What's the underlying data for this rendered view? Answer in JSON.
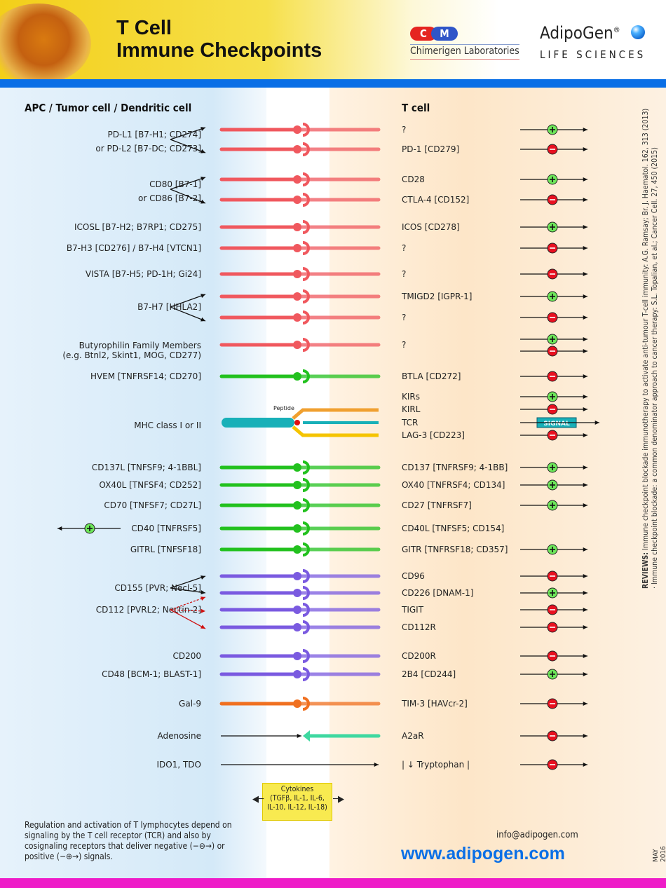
{
  "header": {
    "title_line1": "T Cell",
    "title_line2": "Immune Checkpoints",
    "partner_logo_c": "C",
    "partner_logo_m": "M",
    "partner_name": "Chimerigen Laboratories",
    "brand": "AdipoGen",
    "brand_reg": "®",
    "brand_sub": "LIFE SCIENCES"
  },
  "columns": {
    "left": "APC / Tumor cell / Dendritic cell",
    "right": "T cell"
  },
  "colors": {
    "pd1_family": "#f0585e",
    "tnf_green": "#22c11e",
    "mhc": "#18b0b8",
    "kir": "#f0a030",
    "lag3": "#f5c400",
    "nectin": "#7a5ae0",
    "gal9": "#f07020",
    "adenosine": "#3ed8a0",
    "positive": "#6ee85a",
    "negative": "#e81020",
    "header_blue": "#0a6fe6",
    "footer_pink": "#ee1cc8"
  },
  "left_labels": [
    {
      "lines": [
        "PD-L1 [B7-H1; CD274]",
        "or PD-L2 [B7-DC; CD273]"
      ]
    },
    {
      "lines": [
        "CD80 [B7-1]",
        "or CD86 [B7-2]"
      ]
    },
    {
      "lines": [
        "ICOSL [B7-H2; B7RP1; CD275]"
      ]
    },
    {
      "lines": [
        "B7-H3 [CD276] / B7-H4 [VTCN1]"
      ]
    },
    {
      "lines": [
        "VISTA [B7-H5; PD-1H; Gi24]"
      ]
    },
    {
      "lines": [
        "B7-H7 [HHLA2]"
      ]
    },
    {
      "lines": [
        "Butyrophilin Family Members",
        "(e.g. Btnl2, Skint1, MOG, CD277)"
      ]
    },
    {
      "lines": [
        "HVEM [TNFRSF14; CD270]"
      ]
    },
    {
      "lines": [
        "MHC class I or II"
      ]
    },
    {
      "lines": [
        "CD137L [TNFSF9; 4-1BBL]"
      ]
    },
    {
      "lines": [
        "OX40L [TNFSF4; CD252]"
      ]
    },
    {
      "lines": [
        "CD70 [TNFSF7; CD27L]"
      ]
    },
    {
      "lines": [
        "CD40 [TNFRSF5]"
      ]
    },
    {
      "lines": [
        "GITRL [TNFSF18]"
      ]
    },
    {
      "lines": [
        "CD155 [PVR; Necl-5]"
      ]
    },
    {
      "lines": [
        "CD112 [PVRL2; Nectin-2]"
      ]
    },
    {
      "lines": [
        "CD200"
      ]
    },
    {
      "lines": [
        "CD48 [BCM-1; BLAST-1]"
      ]
    },
    {
      "lines": [
        "Gal-9"
      ]
    },
    {
      "lines": [
        "Adenosine"
      ]
    },
    {
      "lines": [
        "IDO1, TDO"
      ]
    }
  ],
  "receptors": [
    {
      "label": "?",
      "signal": "positive",
      "color": "pd1_family"
    },
    {
      "label": "PD-1 [CD279]",
      "signal": "negative",
      "color": "pd1_family"
    },
    {
      "label": "CD28",
      "signal": "positive",
      "color": "pd1_family"
    },
    {
      "label": "CTLA-4 [CD152]",
      "signal": "negative",
      "color": "pd1_family"
    },
    {
      "label": "ICOS [CD278]",
      "signal": "positive",
      "color": "pd1_family"
    },
    {
      "label": "?",
      "signal": "negative",
      "color": "pd1_family"
    },
    {
      "label": "?",
      "signal": "negative",
      "color": "pd1_family"
    },
    {
      "label": "TMIGD2 [IGPR-1]",
      "signal": "positive",
      "color": "pd1_family"
    },
    {
      "label": "?",
      "signal": "negative",
      "color": "pd1_family"
    },
    {
      "label": "?",
      "signal": "both",
      "color": "pd1_family"
    },
    {
      "label": "BTLA [CD272]",
      "signal": "negative",
      "color": "tnf_green"
    },
    {
      "label": "KIRs",
      "signal": "positive",
      "color": "kir"
    },
    {
      "label": "KIRL",
      "signal": "negative",
      "color": "kir"
    },
    {
      "label": "TCR",
      "signal": "signal",
      "color": "mhc"
    },
    {
      "label": "LAG-3 [CD223]",
      "signal": "negative",
      "color": "lag3"
    },
    {
      "label": "CD137 [TNFRSF9; 4-1BB]",
      "signal": "positive",
      "color": "tnf_green"
    },
    {
      "label": "OX40 [TNFRSF4; CD134]",
      "signal": "positive",
      "color": "tnf_green"
    },
    {
      "label": "CD27 [TNFRSF7]",
      "signal": "positive",
      "color": "tnf_green"
    },
    {
      "label": "CD40L [TNFSF5; CD154]",
      "signal": "none",
      "color": "tnf_green"
    },
    {
      "label": "GITR [TNFRSF18; CD357]",
      "signal": "positive",
      "color": "tnf_green"
    },
    {
      "label": "CD96",
      "signal": "negative",
      "color": "nectin"
    },
    {
      "label": "CD226 [DNAM-1]",
      "signal": "positive",
      "color": "nectin"
    },
    {
      "label": "TIGIT",
      "signal": "negative",
      "color": "nectin"
    },
    {
      "label": "CD112R",
      "signal": "negative",
      "color": "nectin"
    },
    {
      "label": "CD200R",
      "signal": "negative",
      "color": "nectin"
    },
    {
      "label": "2B4 [CD244]",
      "signal": "positive",
      "color": "nectin"
    },
    {
      "label": "TIM-3 [HAVcr-2]",
      "signal": "negative",
      "color": "gal9"
    },
    {
      "label": "A2aR",
      "signal": "negative",
      "color": "adenosine"
    },
    {
      "label": "| ↓ Tryptophan |",
      "signal": "negative",
      "color": "none"
    }
  ],
  "peptide_label": "Peptide",
  "signal_box": "SIGNAL",
  "cytokines": {
    "line1": "Cytokines",
    "line2": "(TGFβ, IL-1, IL-6,",
    "line3": "IL-10, IL-12, IL-18)"
  },
  "references": {
    "bold": "REVIEWS:",
    "text": " Immune checkpoint blockade immunotherapy to activate anti-tumour T-cell immunity: A.G. Ramsay; Br. J. Haematol. 162, 313 (2013) · Immune checkpoint blockade: a common denominator approach to cancer therapy: S.L. Topalian, et al.; Cancer Cell. 27, 450 (2015)"
  },
  "date": "MAY 2016",
  "footer": {
    "note": "Regulation and activation of T lymphocytes depend on signaling by the T cell receptor (TCR) and also by cosignaling receptors that deliver negative (−⊖→) or positive (−⊕→) signals.",
    "email": "info@adipogen.com",
    "website": "www.adipogen.com"
  }
}
